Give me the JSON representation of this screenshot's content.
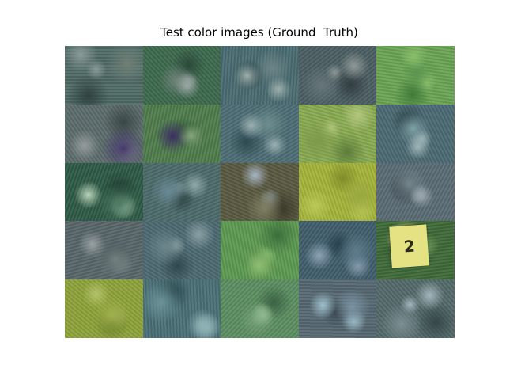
{
  "title": "Test color images (Ground  Truth)",
  "tiles": [
    {
      "colors": [
        "#4f6a66",
        "#8a9a98",
        "#2f423f",
        "#6f8077"
      ]
    },
    {
      "colors": [
        "#3e6a4f",
        "#9aa7a4",
        "#2c4a3a",
        "#70837a"
      ]
    },
    {
      "colors": [
        "#4a6c72",
        "#9fb0ad",
        "#2d4548",
        "#6e8486"
      ]
    },
    {
      "colors": [
        "#4c5f63",
        "#8f9897",
        "#323e42",
        "#66767a"
      ]
    },
    {
      "colors": [
        "#6aa554",
        "#8bbf6b",
        "#3f7a3a",
        "#5d9450"
      ]
    },
    {
      "colors": [
        "#5c6c6c",
        "#959c9b",
        "#3b4746",
        "#463a6c"
      ]
    },
    {
      "colors": [
        "#4f7d4c",
        "#87a67e",
        "#2f5635",
        "#3c2f62"
      ]
    },
    {
      "colors": [
        "#4e6e76",
        "#9ab0b2",
        "#2e4a50",
        "#6d8e8e"
      ]
    },
    {
      "colors": [
        "#8aab52",
        "#b2c77d",
        "#5c7d3b",
        "#7c9a4a"
      ]
    },
    {
      "colors": [
        "#4c6a73",
        "#a0b5b8",
        "#2f454c",
        "#7fa3a8"
      ]
    },
    {
      "colors": [
        "#2f5a46",
        "#b7d2b8",
        "#1f3d31",
        "#4e7a62"
      ]
    },
    {
      "colors": [
        "#4d6b6b",
        "#8fa8a8",
        "#2e4544",
        "#6a8a96"
      ]
    },
    {
      "colors": [
        "#5a5a42",
        "#a6b5c2",
        "#3b3a2a",
        "#7f7f63"
      ]
    },
    {
      "colors": [
        "#a5b53a",
        "#bcc85a",
        "#7f8d2a",
        "#9aa93f"
      ]
    },
    {
      "colors": [
        "#5a6c75",
        "#9aa6ad",
        "#3a454c",
        "#75868d"
      ]
    },
    {
      "colors": [
        "#58676b",
        "#9aa1a3",
        "#39444a",
        "#73817f"
      ]
    },
    {
      "colors": [
        "#4d6a72",
        "#8aa0a4",
        "#30474e",
        "#6b878b"
      ]
    },
    {
      "colors": [
        "#5d9a52",
        "#8cbd72",
        "#3c6f3c",
        "#76a65e"
      ]
    },
    {
      "colors": [
        "#415e6c",
        "#8da3b5",
        "#28404e",
        "#5e7c8c"
      ]
    },
    {
      "colors": [
        "#3f6a38",
        "#6f9a56",
        "#2c4c28",
        "#e4e282"
      ],
      "tag": "2"
    },
    {
      "colors": [
        "#8ea43a",
        "#b4c26a",
        "#6c7f2a",
        "#a0b04e"
      ]
    },
    {
      "colors": [
        "#4a7077",
        "#8fb2b5",
        "#2d4c51",
        "#6b9398"
      ]
    },
    {
      "colors": [
        "#5c8f62",
        "#8fb88f",
        "#3b6344",
        "#77a17a"
      ]
    },
    {
      "colors": [
        "#566873",
        "#9fc1cc",
        "#3a4852",
        "#7a93a2"
      ]
    },
    {
      "colors": [
        "#546a6b",
        "#a3b6bd",
        "#364648",
        "#7b8f92"
      ]
    }
  ]
}
